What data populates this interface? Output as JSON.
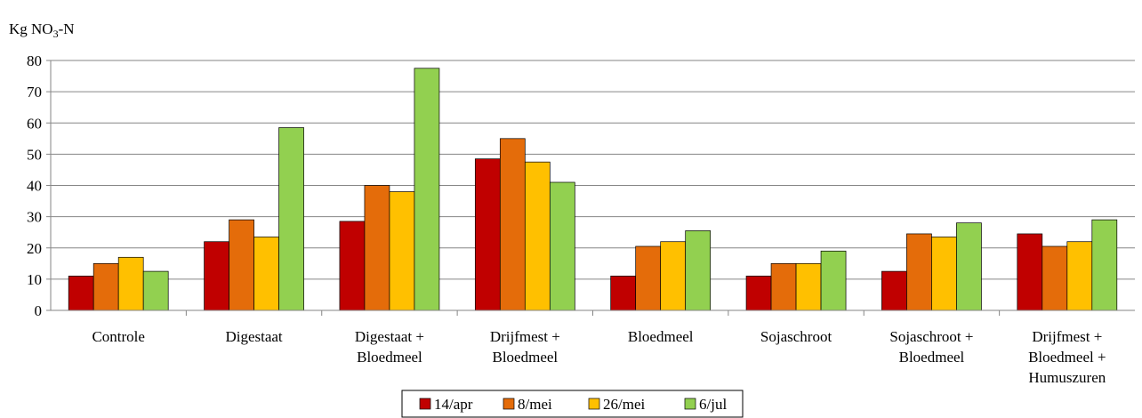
{
  "chart_data": {
    "type": "bar",
    "ylabel_main": "Kg NO",
    "ylabel_sub": "3",
    "ylabel_suffix": "-N",
    "ylim": [
      0,
      80
    ],
    "yticks": [
      0,
      10,
      20,
      30,
      40,
      50,
      60,
      70,
      80
    ],
    "grid": true,
    "legend_position": "bottom-center",
    "categories": [
      [
        "Controle"
      ],
      [
        "Digestaat"
      ],
      [
        "Digestaat +",
        "Bloedmeel"
      ],
      [
        "Drijfmest +",
        "Bloedmeel"
      ],
      [
        "Bloedmeel"
      ],
      [
        "Sojaschroot"
      ],
      [
        "Sojaschroot +",
        "Bloedmeel"
      ],
      [
        "Drijfmest +",
        "Bloedmeel +",
        "Humuszuren"
      ]
    ],
    "series": [
      {
        "name": "14/apr",
        "color": "#c00000",
        "values": [
          11,
          22,
          28.5,
          48.5,
          11,
          11,
          12.5,
          24.5
        ]
      },
      {
        "name": "8/mei",
        "color": "#e46c0a",
        "values": [
          15,
          29,
          40,
          55,
          20.5,
          15,
          24.5,
          20.5
        ]
      },
      {
        "name": "26/mei",
        "color": "#ffc000",
        "values": [
          17,
          23.5,
          38,
          47.5,
          22,
          15,
          23.5,
          22
        ]
      },
      {
        "name": "6/jul",
        "color": "#92d050",
        "values": [
          12.5,
          58.5,
          77.5,
          41,
          25.5,
          19,
          28,
          29
        ]
      }
    ]
  }
}
